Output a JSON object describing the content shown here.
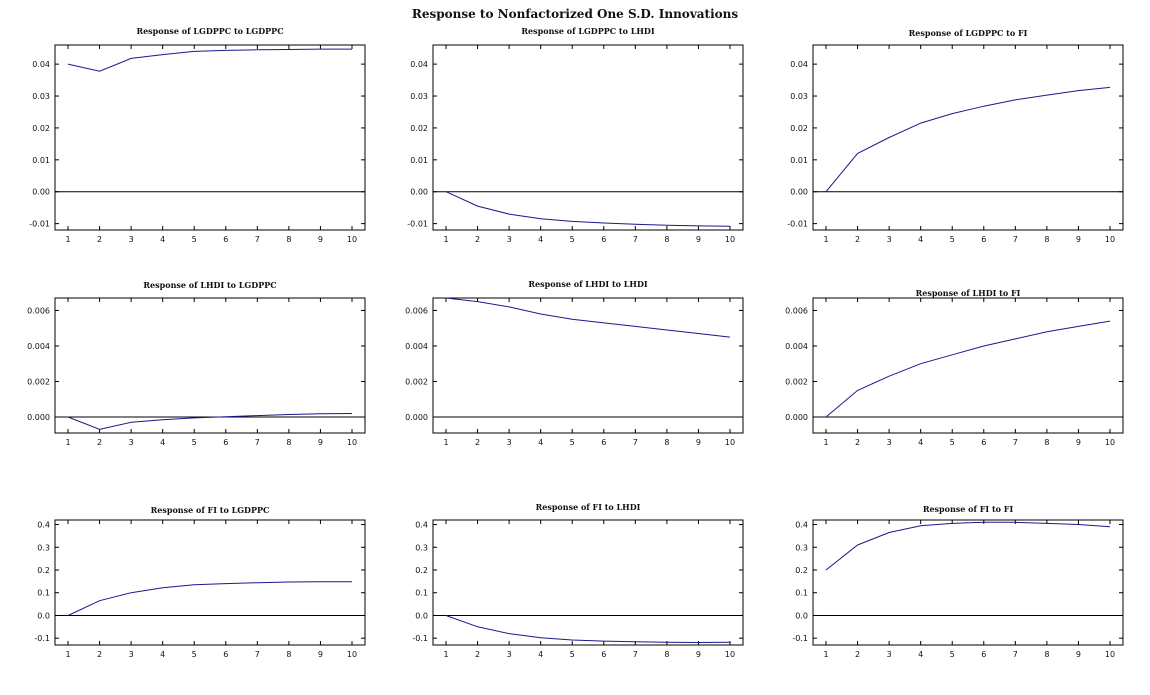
{
  "figure": {
    "title": "Response to Nonfactorized One S.D. Innovations"
  },
  "colors": {
    "series": "#1a1a8c",
    "axis": "#000000"
  },
  "chart_data": [
    {
      "type": "line",
      "title": "Response of LGDPPC to LGDPPC",
      "x": [
        1,
        2,
        3,
        4,
        5,
        6,
        7,
        8,
        9,
        10
      ],
      "xticks": [
        "1",
        "2",
        "3",
        "4",
        "5",
        "6",
        "7",
        "8",
        "9",
        "10"
      ],
      "ylim": [
        -0.012,
        0.046
      ],
      "yticks": [
        "-0.01",
        "0.00",
        "0.01",
        "0.02",
        "0.03",
        "0.04"
      ],
      "ytick_values": [
        -0.01,
        0,
        0.01,
        0.02,
        0.03,
        0.04
      ],
      "values": [
        0.04,
        0.0378,
        0.0418,
        0.043,
        0.044,
        0.0443,
        0.0445,
        0.0446,
        0.0447,
        0.0447
      ]
    },
    {
      "type": "line",
      "title": "Response of LGDPPC to LHDI",
      "x": [
        1,
        2,
        3,
        4,
        5,
        6,
        7,
        8,
        9,
        10
      ],
      "xticks": [
        "1",
        "2",
        "3",
        "4",
        "5",
        "6",
        "7",
        "8",
        "9",
        "10"
      ],
      "ylim": [
        -0.012,
        0.046
      ],
      "yticks": [
        "-0.01",
        "0.00",
        "0.01",
        "0.02",
        "0.03",
        "0.04"
      ],
      "ytick_values": [
        -0.01,
        0,
        0.01,
        0.02,
        0.03,
        0.04
      ],
      "values": [
        0.0,
        -0.0045,
        -0.007,
        -0.0085,
        -0.0093,
        -0.0098,
        -0.0102,
        -0.0105,
        -0.0107,
        -0.0108
      ]
    },
    {
      "type": "line",
      "title": "Response of LGDPPC to FI",
      "x": [
        1,
        2,
        3,
        4,
        5,
        6,
        7,
        8,
        9,
        10
      ],
      "xticks": [
        "1",
        "2",
        "3",
        "4",
        "5",
        "6",
        "7",
        "8",
        "9",
        "10"
      ],
      "ylim": [
        -0.012,
        0.046
      ],
      "yticks": [
        "-0.01",
        "0.00",
        "0.01",
        "0.02",
        "0.03",
        "0.04"
      ],
      "ytick_values": [
        -0.01,
        0,
        0.01,
        0.02,
        0.03,
        0.04
      ],
      "values": [
        0.0,
        0.012,
        0.017,
        0.0215,
        0.0245,
        0.0268,
        0.0288,
        0.0303,
        0.0317,
        0.0327
      ]
    },
    {
      "type": "line",
      "title": "Response of LHDI to LGDPPC",
      "x": [
        1,
        2,
        3,
        4,
        5,
        6,
        7,
        8,
        9,
        10
      ],
      "xticks": [
        "1",
        "2",
        "3",
        "4",
        "5",
        "6",
        "7",
        "8",
        "9",
        "10"
      ],
      "ylim": [
        -0.0009,
        0.0067
      ],
      "yticks": [
        "0.000",
        "0.002",
        "0.004",
        "0.006"
      ],
      "ytick_values": [
        0,
        0.002,
        0.004,
        0.006
      ],
      "values": [
        0.0,
        -0.0007,
        -0.0003,
        -0.00015,
        -5e-05,
        2e-05,
        8e-05,
        0.00014,
        0.00018,
        0.0002
      ]
    },
    {
      "type": "line",
      "title": "Response of LHDI to LHDI",
      "x": [
        1,
        2,
        3,
        4,
        5,
        6,
        7,
        8,
        9,
        10
      ],
      "xticks": [
        "1",
        "2",
        "3",
        "4",
        "5",
        "6",
        "7",
        "8",
        "9",
        "10"
      ],
      "ylim": [
        -0.0009,
        0.0067
      ],
      "yticks": [
        "0.000",
        "0.002",
        "0.004",
        "0.006"
      ],
      "ytick_values": [
        0,
        0.002,
        0.004,
        0.006
      ],
      "values": [
        0.0067,
        0.0065,
        0.0062,
        0.0058,
        0.0055,
        0.0053,
        0.0051,
        0.0049,
        0.0047,
        0.0045
      ]
    },
    {
      "type": "line",
      "title": "Response of LHDI to FI",
      "x": [
        1,
        2,
        3,
        4,
        5,
        6,
        7,
        8,
        9,
        10
      ],
      "xticks": [
        "1",
        "2",
        "3",
        "4",
        "5",
        "6",
        "7",
        "8",
        "9",
        "10"
      ],
      "ylim": [
        -0.0009,
        0.0067
      ],
      "yticks": [
        "0.000",
        "0.002",
        "0.004",
        "0.006"
      ],
      "ytick_values": [
        0,
        0.002,
        0.004,
        0.006
      ],
      "values": [
        0.0,
        0.0015,
        0.0023,
        0.003,
        0.0035,
        0.004,
        0.0044,
        0.0048,
        0.0051,
        0.0054
      ]
    },
    {
      "type": "line",
      "title": "Response of FI to LGDPPC",
      "x": [
        1,
        2,
        3,
        4,
        5,
        6,
        7,
        8,
        9,
        10
      ],
      "xticks": [
        "1",
        "2",
        "3",
        "4",
        "5",
        "6",
        "7",
        "8",
        "9",
        "10"
      ],
      "ylim": [
        -0.13,
        0.42
      ],
      "yticks": [
        "-0.1",
        "0.0",
        "0.1",
        "0.2",
        "0.3",
        "0.4"
      ],
      "ytick_values": [
        -0.1,
        0,
        0.1,
        0.2,
        0.3,
        0.4
      ],
      "values": [
        0.0,
        0.065,
        0.1,
        0.122,
        0.135,
        0.14,
        0.144,
        0.147,
        0.148,
        0.148
      ]
    },
    {
      "type": "line",
      "title": "Response of FI to LHDI",
      "x": [
        1,
        2,
        3,
        4,
        5,
        6,
        7,
        8,
        9,
        10
      ],
      "xticks": [
        "1",
        "2",
        "3",
        "4",
        "5",
        "6",
        "7",
        "8",
        "9",
        "10"
      ],
      "ylim": [
        -0.13,
        0.42
      ],
      "yticks": [
        "-0.1",
        "0.0",
        "0.1",
        "0.2",
        "0.3",
        "0.4"
      ],
      "ytick_values": [
        -0.1,
        0,
        0.1,
        0.2,
        0.3,
        0.4
      ],
      "values": [
        0.0,
        -0.05,
        -0.08,
        -0.098,
        -0.108,
        -0.113,
        -0.116,
        -0.118,
        -0.119,
        -0.118
      ]
    },
    {
      "type": "line",
      "title": "Response of FI to FI",
      "x": [
        1,
        2,
        3,
        4,
        5,
        6,
        7,
        8,
        9,
        10
      ],
      "xticks": [
        "1",
        "2",
        "3",
        "4",
        "5",
        "6",
        "7",
        "8",
        "9",
        "10"
      ],
      "ylim": [
        -0.13,
        0.42
      ],
      "yticks": [
        "-0.1",
        "0.0",
        "0.1",
        "0.2",
        "0.3",
        "0.4"
      ],
      "ytick_values": [
        -0.1,
        0,
        0.1,
        0.2,
        0.3,
        0.4
      ],
      "values": [
        0.2,
        0.31,
        0.365,
        0.395,
        0.405,
        0.41,
        0.41,
        0.405,
        0.4,
        0.39
      ]
    }
  ]
}
